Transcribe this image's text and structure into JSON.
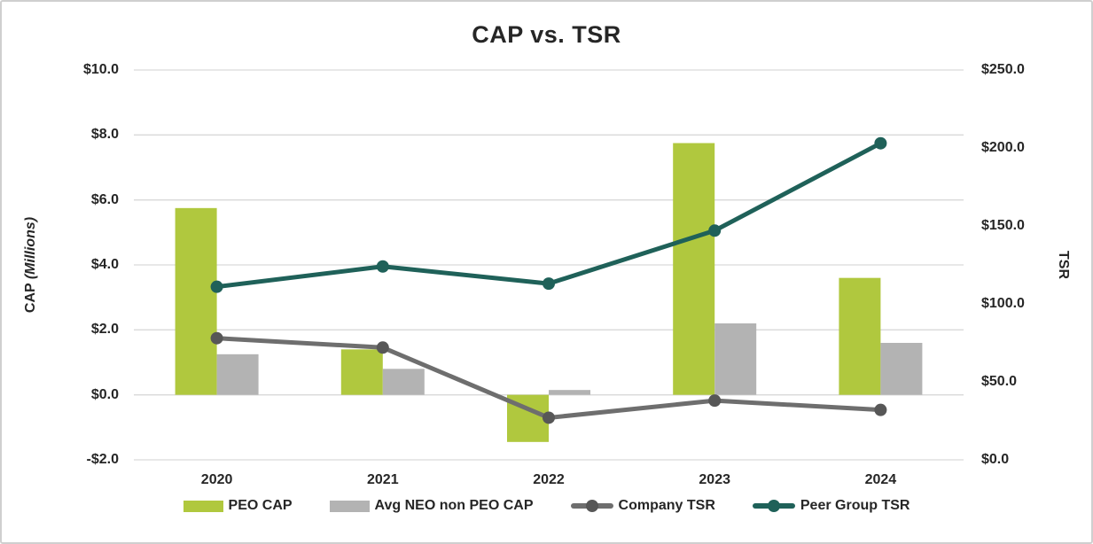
{
  "chart_data": {
    "type": "combo-bar-line",
    "title": "CAP vs. TSR",
    "categories": [
      "2020",
      "2021",
      "2022",
      "2023",
      "2024"
    ],
    "series": [
      {
        "name": "PEO CAP",
        "type": "bar",
        "axis": "left",
        "color": "#b0c83e",
        "values": [
          5.75,
          1.4,
          -1.45,
          7.75,
          3.6
        ]
      },
      {
        "name": "Avg NEO non PEO CAP",
        "type": "bar",
        "axis": "left",
        "color": "#b3b3b3",
        "values": [
          1.25,
          0.8,
          0.15,
          2.2,
          1.6
        ]
      },
      {
        "name": "Company TSR",
        "type": "line",
        "axis": "right",
        "color": "#6e6e6e",
        "dot_color": "#575757",
        "values": [
          78,
          72,
          27,
          38,
          32
        ]
      },
      {
        "name": "Peer Group TSR",
        "type": "line",
        "axis": "right",
        "color": "#1f6159",
        "dot_color": "#1f6159",
        "values": [
          111,
          124,
          113,
          147,
          203
        ]
      }
    ],
    "left_axis": {
      "label_main": "CAP",
      "label_paren": "(Millions)",
      "min": -2,
      "max": 10,
      "step": 2,
      "tick_labels": [
        "$10.0",
        "$8.0",
        "$6.0",
        "$4.0",
        "$2.0",
        "$0.0",
        "-$2.0"
      ]
    },
    "right_axis": {
      "label": "TSR",
      "min": 0,
      "max": 250,
      "step": 50,
      "tick_labels": [
        "$250.0",
        "$200.0",
        "$150.0",
        "$100.0",
        "$50.0",
        "$0.0"
      ]
    },
    "grid": "horizontal",
    "gridline_color": "#d9d9d9",
    "legend_position": "bottom",
    "text_color": "#262626"
  }
}
